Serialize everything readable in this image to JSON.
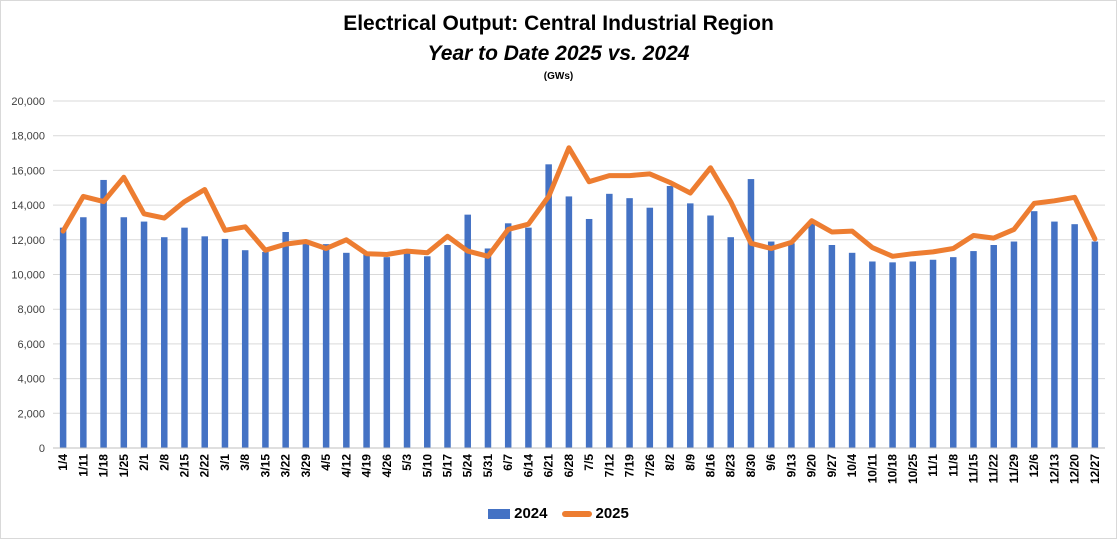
{
  "chart_data": {
    "type": "bar+line",
    "title": "Electrical Output:  Central Industrial Region",
    "subtitle": "Year to Date 2025 vs. 2024",
    "unit_label": "(GWs)",
    "ylim": [
      0,
      20000
    ],
    "yticks": [
      0,
      2000,
      4000,
      6000,
      8000,
      10000,
      12000,
      14000,
      16000,
      18000,
      20000
    ],
    "ytick_labels": [
      "0",
      "2,000",
      "4,000",
      "6,000",
      "8,000",
      "10,000",
      "12,000",
      "14,000",
      "16,000",
      "18,000",
      "20,000"
    ],
    "grid": true,
    "categories": [
      "1/4",
      "1/11",
      "1/18",
      "1/25",
      "2/1",
      "2/8",
      "2/15",
      "2/22",
      "3/1",
      "3/8",
      "3/15",
      "3/22",
      "3/29",
      "4/5",
      "4/12",
      "4/19",
      "4/26",
      "5/3",
      "5/10",
      "5/17",
      "5/24",
      "5/31",
      "6/7",
      "6/14",
      "6/21",
      "6/28",
      "7/5",
      "7/12",
      "7/19",
      "7/26",
      "8/2",
      "8/9",
      "8/16",
      "8/23",
      "8/30",
      "9/6",
      "9/13",
      "9/20",
      "9/27",
      "10/4",
      "10/11",
      "10/18",
      "10/25",
      "11/1",
      "11/8",
      "11/15",
      "11/22",
      "11/29",
      "12/6",
      "12/13",
      "12/20",
      "12/27"
    ],
    "series": [
      {
        "name": "2024",
        "type": "bar",
        "color": "#4472c4",
        "values": [
          12700,
          13300,
          15450,
          13300,
          13050,
          12150,
          12700,
          12200,
          12050,
          11400,
          11300,
          12450,
          11800,
          11750,
          11250,
          11150,
          11000,
          11250,
          11050,
          11700,
          13450,
          11500,
          12950,
          12700,
          16350,
          14500,
          13200,
          14650,
          14400,
          13850,
          15100,
          14100,
          13400,
          12150,
          15500,
          11900,
          11800,
          13000,
          11700,
          11250,
          10750,
          10700,
          10750,
          10850,
          11000,
          11350,
          11700,
          11900,
          13650,
          13050,
          12900,
          11900
        ]
      },
      {
        "name": "2025",
        "type": "line",
        "color": "#ed7d31",
        "values": [
          12500,
          14500,
          14200,
          15600,
          13500,
          13250,
          14200,
          14900,
          12550,
          12750,
          11400,
          11750,
          11900,
          11500,
          12000,
          11200,
          11150,
          11350,
          11250,
          12200,
          11350,
          11050,
          12600,
          12900,
          14500,
          17300,
          15350,
          15700,
          15700,
          15800,
          15300,
          14700,
          16150,
          14200,
          11800,
          11500,
          11850,
          13100,
          12450,
          12500,
          11550,
          11050,
          11200,
          11300,
          11500,
          12250,
          12100,
          12600,
          14100,
          14250,
          14450,
          12050
        ]
      }
    ],
    "legend": [
      "2024",
      "2025"
    ],
    "legend_position": "bottom-center"
  }
}
